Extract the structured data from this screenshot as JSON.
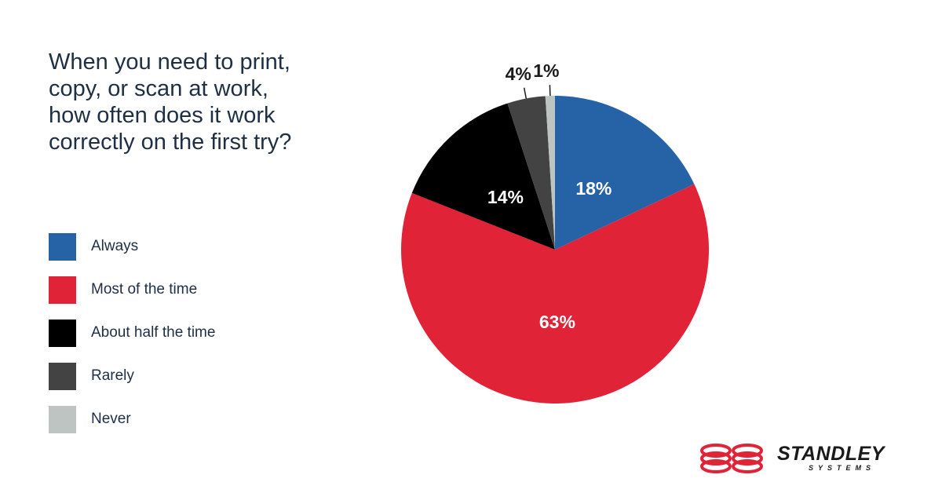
{
  "title": "When you need to print, copy, or scan at work, how often does it work correctly on the first try?",
  "chart_data": {
    "type": "pie",
    "title": "When you need to print, copy, or scan at work, how often does it work correctly on the first try?",
    "slices": [
      {
        "label": "Always",
        "value": 18,
        "display": "18%",
        "color": "#2563a6",
        "label_color": "#ffffff"
      },
      {
        "label": "Most of the time",
        "value": 63,
        "display": "63%",
        "color": "#e02337",
        "label_color": "#ffffff"
      },
      {
        "label": "About half the time",
        "value": 14,
        "display": "14%",
        "color": "#000000",
        "label_color": "#ffffff"
      },
      {
        "label": "Rarely",
        "value": 4,
        "display": "4%",
        "color": "#434343",
        "label_color": "#1a1a1a"
      },
      {
        "label": "Never",
        "value": 1,
        "display": "1%",
        "color": "#bdc4c2",
        "label_color": "#1a1a1a"
      }
    ],
    "legend_position": "left"
  },
  "logo": {
    "name": "STANDLEY",
    "tagline": "SYSTEMS",
    "color": "#e02337"
  }
}
